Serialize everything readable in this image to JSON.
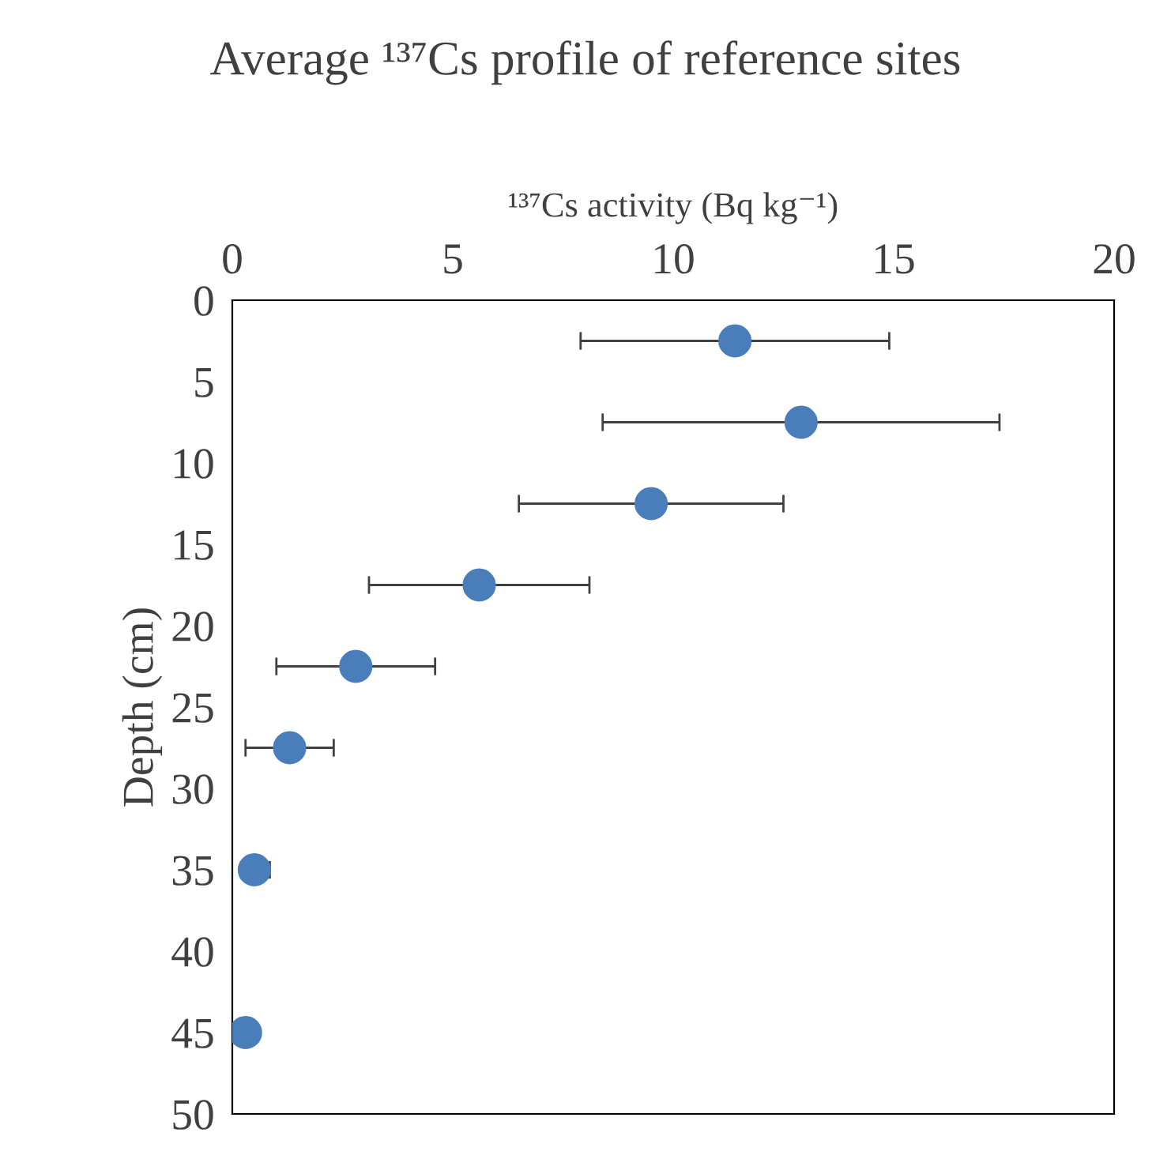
{
  "chart_data": {
    "type": "scatter",
    "title": "Average ¹³⁷Cs profile of reference sites",
    "xlabel": "¹³⁷Cs activity (Bq kg⁻¹)",
    "ylabel": "Depth (cm)",
    "x": [
      11.4,
      12.9,
      9.5,
      5.6,
      2.8,
      1.3,
      0.5,
      0.3
    ],
    "values": [
      2.5,
      7.5,
      12.5,
      17.5,
      22.5,
      27.5,
      35,
      45
    ],
    "xerrors": [
      [
        7.9,
        14.9
      ],
      [
        8.4,
        17.4
      ],
      [
        6.5,
        12.5
      ],
      [
        3.1,
        8.1
      ],
      [
        1.0,
        4.6
      ],
      [
        0.3,
        2.3
      ],
      [
        0.2,
        0.85
      ],
      null
    ],
    "color": "#4a7ebb",
    "marker": "circle",
    "xlim": [
      0,
      20
    ],
    "xticks": [
      0,
      5,
      10,
      15,
      20
    ],
    "ylim": [
      50,
      0
    ],
    "yticks": [
      0,
      5,
      10,
      15,
      20,
      25,
      30,
      35,
      40,
      45,
      50
    ],
    "grid": false
  }
}
